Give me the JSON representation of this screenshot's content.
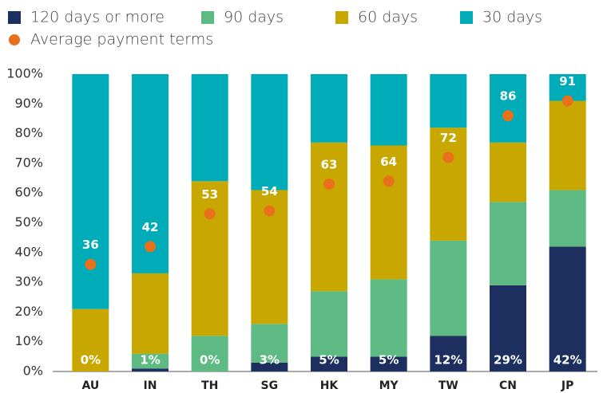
{
  "chart_data": {
    "type": "stacked_bar",
    "categories": [
      "AU",
      "IN",
      "TH",
      "SG",
      "HK",
      "MY",
      "TW",
      "CN",
      "JP"
    ],
    "series": [
      {
        "name": "120 days or more",
        "color": "#1c2f5e",
        "values": [
          0,
          1,
          0,
          3,
          5,
          5,
          12,
          29,
          42
        ],
        "value_labels": [
          "0%",
          "1%",
          "0%",
          "3%",
          "5%",
          "5%",
          "12%",
          "29%",
          "42%"
        ]
      },
      {
        "name": "90 days",
        "color": "#5dba82",
        "values": [
          0,
          5,
          12,
          13,
          22,
          26,
          32,
          28,
          19
        ]
      },
      {
        "name": "60 days",
        "color": "#c8a800",
        "values": [
          21,
          27,
          52,
          45,
          50,
          45,
          38,
          20,
          30
        ]
      },
      {
        "name": "30 days",
        "color": "#00acb8",
        "values": [
          79,
          67,
          36,
          39,
          23,
          24,
          18,
          23,
          9
        ]
      },
      {
        "name": "Average payment terms",
        "type": "dot",
        "color": "#e8701a",
        "values": [
          36,
          42,
          53,
          54,
          63,
          64,
          72,
          86,
          91
        ]
      }
    ],
    "ylim": [
      0,
      100
    ],
    "yticks": [
      {
        "value": 0,
        "label": "0%"
      },
      {
        "value": 10,
        "label": "10%"
      },
      {
        "value": 20,
        "label": "20%"
      },
      {
        "value": 30,
        "label": "30%"
      },
      {
        "value": 40,
        "label": "40%"
      },
      {
        "value": 50,
        "label": "50%"
      },
      {
        "value": 60,
        "label": "60%"
      },
      {
        "value": 70,
        "label": "70%"
      },
      {
        "value": 80,
        "label": "80%"
      },
      {
        "value": 90,
        "label": "90%"
      },
      {
        "value": 100,
        "label": "100%"
      }
    ],
    "grid": false
  }
}
